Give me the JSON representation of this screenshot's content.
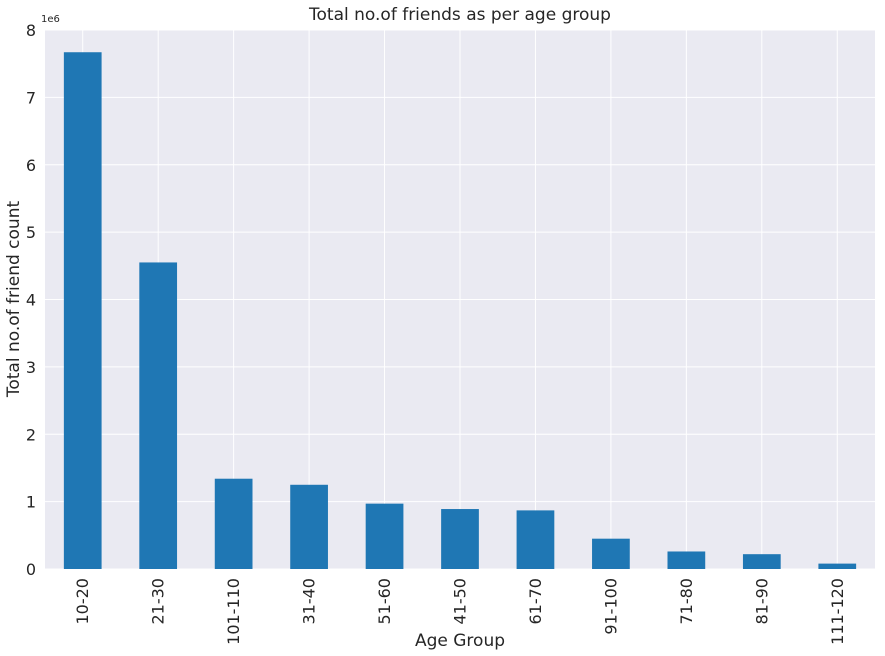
{
  "chart_data": {
    "type": "bar",
    "title": "Total no.of friends as per age group",
    "xlabel": "Age Group",
    "ylabel": "Total no.of friend count",
    "y_offset_label": "1e6",
    "ylim": [
      0,
      8
    ],
    "yticks": [
      0,
      1,
      2,
      3,
      4,
      5,
      6,
      7,
      8
    ],
    "grid": true,
    "categories": [
      "10-20",
      "21-30",
      "101-110",
      "31-40",
      "51-60",
      "41-50",
      "61-70",
      "91-100",
      "71-80",
      "81-90",
      "111-120"
    ],
    "values": [
      7.67,
      4.55,
      1.34,
      1.25,
      0.97,
      0.89,
      0.87,
      0.45,
      0.26,
      0.22,
      0.08
    ],
    "bar_color": "#1f77b4",
    "background_color": "#eaeaf2",
    "grid_color": "#ffffff"
  }
}
